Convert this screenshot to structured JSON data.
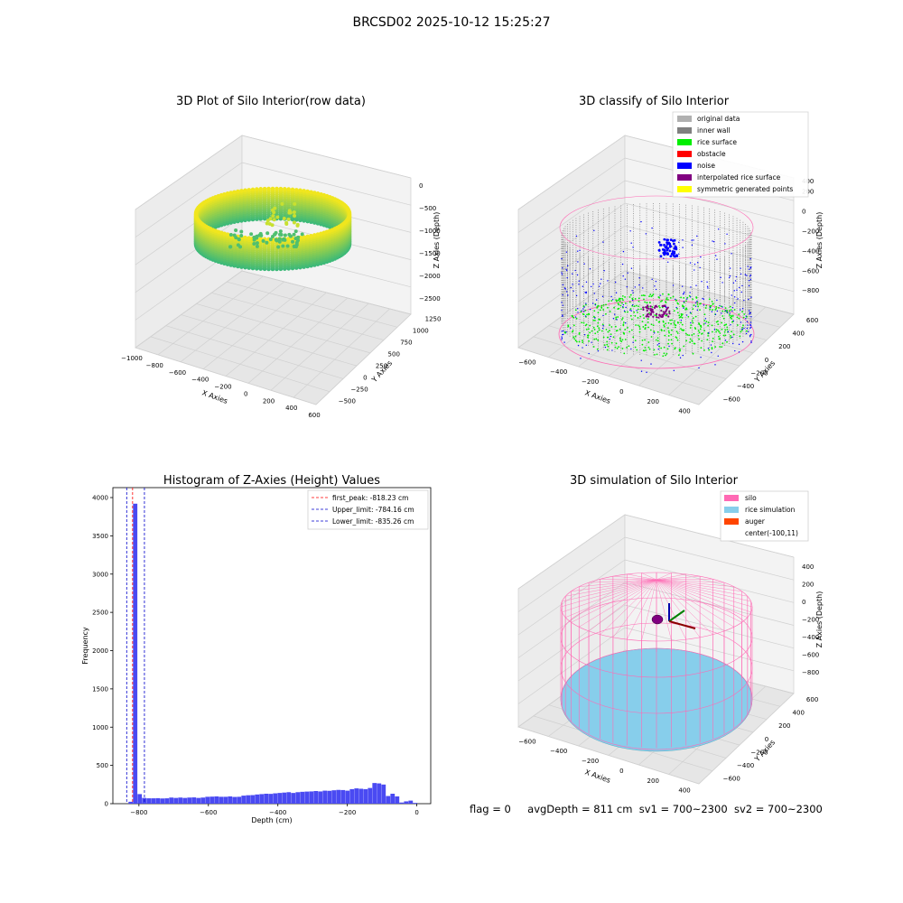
{
  "suptitle": "BRCSD02 2025-10-12 15:25:27",
  "footer": {
    "flag": "flag = 0",
    "avg_depth": "avgDepth = 811 cm",
    "sv1": "sv1 = 700~2300",
    "sv2": "sv2 = 700~2300"
  },
  "colors": {
    "original": "#b0b0b0",
    "inner_wall": "#808080",
    "rice_surface": "#00ee00",
    "obstacle": "#ff0000",
    "noise": "#0000ff",
    "interpolated": "#800080",
    "symmetric": "#ffff00",
    "hist_bar": "#4a4af2",
    "silo": "#ff69b4",
    "rice_sim": "#87ceeb",
    "auger": "#ff4500"
  },
  "chart_data": [
    {
      "type": "scatter",
      "title": "3D Plot of Silo Interior(row data)",
      "xlabel": "X Axies",
      "ylabel": "Y Axies",
      "zlabel": "Z Axies (Depth)",
      "x_ticks": [
        "−1000",
        "−800",
        "−600",
        "−400",
        "−200",
        "0",
        "200",
        "400",
        "600"
      ],
      "y_ticks": [
        "−500",
        "−250",
        "0",
        "250",
        "500",
        "750",
        "1000",
        "1250"
      ],
      "z_ticks": [
        "0",
        "−500",
        "−1000",
        "−1500",
        "−2000",
        "−2500"
      ],
      "xlim": [
        -1000,
        600
      ],
      "ylim": [
        -500,
        1250
      ],
      "zlim": [
        -2500,
        0
      ],
      "colormap": "viridis"
    },
    {
      "type": "scatter",
      "title": "3D classify of Silo Interior",
      "xlabel": "X Axies",
      "ylabel": "Y Axies",
      "zlabel": "Z Axies (Depth)",
      "x_ticks": [
        "−600",
        "−400",
        "−200",
        "0",
        "200",
        "400"
      ],
      "y_ticks": [
        "−600",
        "−400",
        "−200",
        "0",
        "200",
        "400",
        "600"
      ],
      "z_ticks": [
        "200",
        "0",
        "−200",
        "−400",
        "−600",
        "−800"
      ],
      "z_top_tick": "400",
      "legend": [
        {
          "label": "original data",
          "color": "#b0b0b0"
        },
        {
          "label": "inner wall",
          "color": "#808080"
        },
        {
          "label": "rice surface",
          "color": "#00ee00"
        },
        {
          "label": "obstacle",
          "color": "#ff0000"
        },
        {
          "label": "noise",
          "color": "#0000ff"
        },
        {
          "label": "interpolated rice surface",
          "color": "#800080"
        },
        {
          "label": "symmetric generated points",
          "color": "#ffff00"
        }
      ]
    },
    {
      "type": "bar",
      "title": "Histogram of Z-Axies (Height) Values",
      "xlabel": "Depth (cm)",
      "ylabel": "Frequency",
      "xlim": [
        -875,
        40
      ],
      "ylim": [
        0,
        4130
      ],
      "x_ticks": [
        -800,
        -600,
        -400,
        -200,
        0
      ],
      "y_ticks": [
        0,
        500,
        1000,
        1500,
        2000,
        2500,
        3000,
        3500,
        4000
      ],
      "bin_edges": [
        -830,
        -817,
        -804,
        -791,
        -778,
        -765,
        -752,
        -739,
        -726,
        -713,
        -700,
        -687,
        -674,
        -661,
        -648,
        -635,
        -622,
        -609,
        -596,
        -583,
        -570,
        -557,
        -544,
        -531,
        -518,
        -505,
        -492,
        -479,
        -466,
        -453,
        -440,
        -427,
        -414,
        -401,
        -388,
        -375,
        -362,
        -349,
        -336,
        -323,
        -310,
        -297,
        -284,
        -271,
        -258,
        -245,
        -232,
        -219,
        -206,
        -193,
        -180,
        -167,
        -154,
        -141,
        -128,
        -115,
        -102,
        -89,
        -76,
        -63,
        -50,
        -37,
        -24,
        -11,
        2
      ],
      "values": [
        25,
        3920,
        125,
        75,
        70,
        70,
        72,
        68,
        70,
        80,
        75,
        80,
        75,
        80,
        82,
        75,
        80,
        90,
        92,
        95,
        90,
        90,
        95,
        88,
        90,
        105,
        110,
        112,
        120,
        125,
        130,
        128,
        135,
        140,
        145,
        150,
        140,
        150,
        155,
        158,
        160,
        165,
        160,
        170,
        168,
        175,
        180,
        178,
        170,
        190,
        200,
        195,
        190,
        205,
        270,
        265,
        250,
        100,
        130,
        95,
        15,
        30,
        40,
        10
      ],
      "vlines": [
        {
          "label": "first_peak: -818.23 cm",
          "x": -818.23,
          "color": "#ff0000"
        },
        {
          "label": "Upper_limit: -784.16 cm",
          "x": -784.16,
          "color": "#0000cc"
        },
        {
          "label": "Lower_limit: -835.26 cm",
          "x": -835.26,
          "color": "#0000cc"
        }
      ]
    },
    {
      "type": "scatter",
      "title": "3D simulation of Silo Interior",
      "xlabel": "X Axies",
      "ylabel": "Y Axies",
      "zlabel": "Z Axies (Depth)",
      "x_ticks": [
        "−600",
        "−400",
        "−200",
        "0",
        "200",
        "400"
      ],
      "y_ticks": [
        "−600",
        "−400",
        "−200",
        "0",
        "200",
        "400",
        "600"
      ],
      "z_ticks": [
        "400",
        "200",
        "0",
        "−200",
        "−400",
        "−600",
        "−800"
      ],
      "legend": [
        {
          "label": "silo",
          "color": "#ff69b4"
        },
        {
          "label": "rice simulation",
          "color": "#87ceeb"
        },
        {
          "label": "auger",
          "color": "#ff4500"
        },
        {
          "label": "center(-100,11)",
          "color": ""
        }
      ]
    }
  ]
}
